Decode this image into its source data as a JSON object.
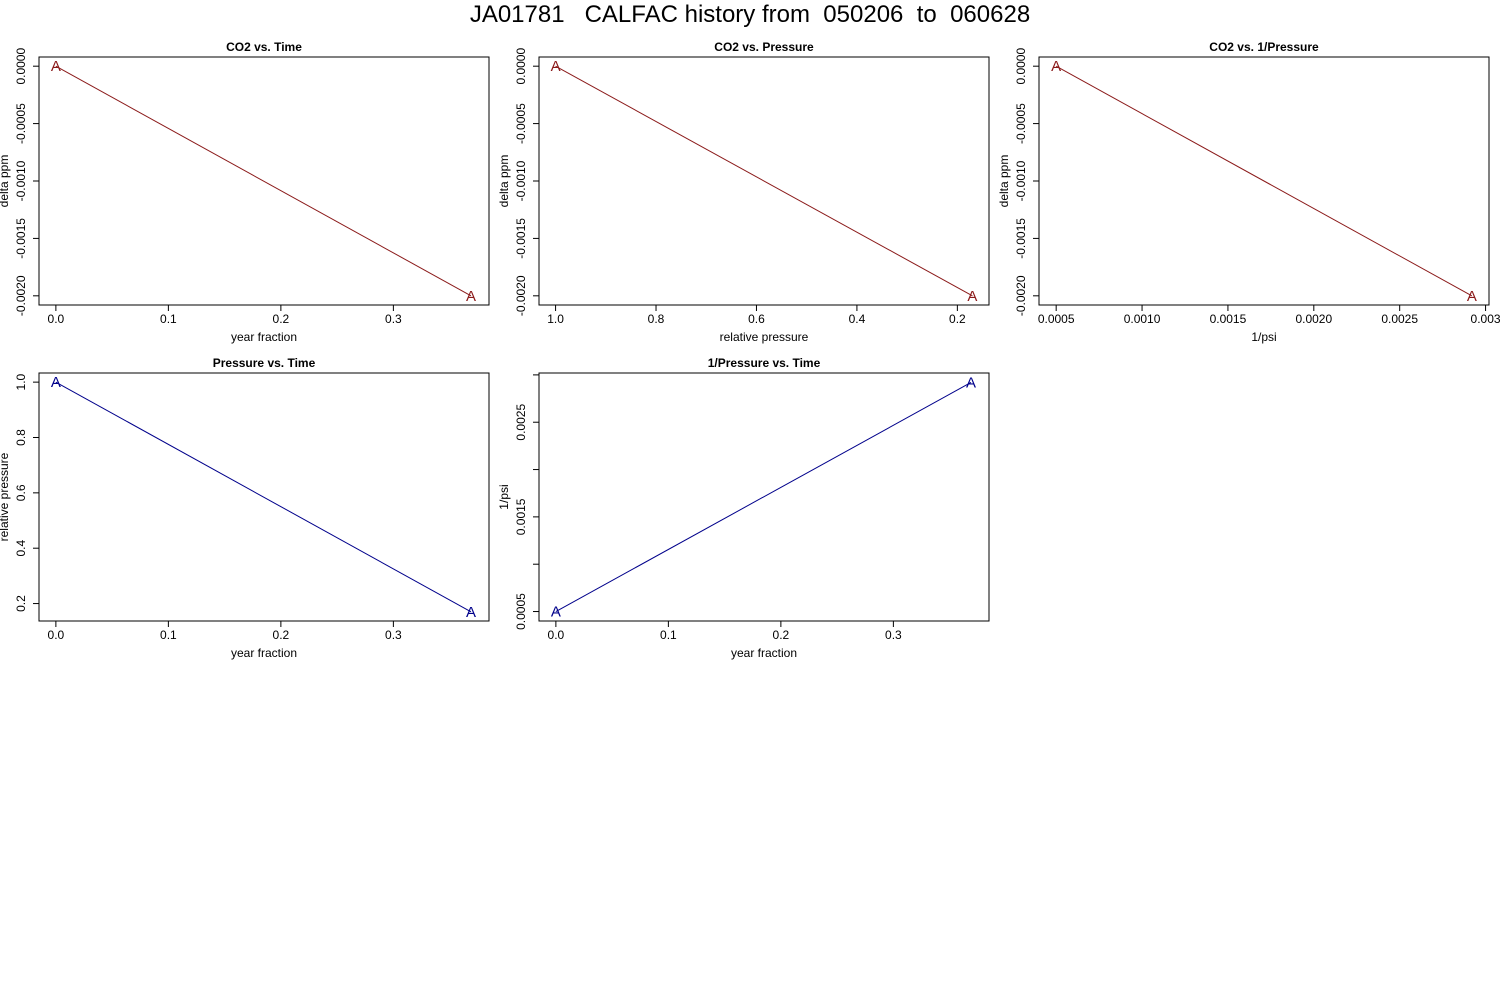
{
  "page": {
    "title": "JA01781   CALFAC history from  050206  to  060628"
  },
  "colors": {
    "co2_series": "#8b1a1a",
    "pressure_series": "#00008b",
    "axis": "#000000",
    "background": "#ffffff"
  },
  "chart_data": [
    {
      "id": "co2-vs-time",
      "type": "line",
      "title": "CO2 vs. Time",
      "xlabel": "year fraction",
      "ylabel": "delta ppm",
      "xlim": [
        -0.015,
        0.385
      ],
      "ylim": [
        -0.00208,
        8e-05
      ],
      "xticks": [
        0.0,
        0.1,
        0.2,
        0.3
      ],
      "xtick_labels": [
        "0.0",
        "0.1",
        "0.2",
        "0.3"
      ],
      "yticks": [
        0.0,
        -0.0005,
        -0.001,
        -0.0015,
        -0.002
      ],
      "ytick_labels": [
        "0.0000",
        "-0.0005",
        "-0.0010",
        "-0.0015",
        "-0.0020"
      ],
      "x_reversed": false,
      "color": "#8b1a1a",
      "marker": "A",
      "x": [
        0.0,
        0.369
      ],
      "y": [
        0.0,
        -0.002
      ]
    },
    {
      "id": "co2-vs-pressure",
      "type": "line",
      "title": "CO2 vs. Pressure",
      "xlabel": "relative pressure",
      "ylabel": "delta ppm",
      "xlim": [
        1.033,
        0.137
      ],
      "ylim": [
        -0.00208,
        8e-05
      ],
      "xticks": [
        1.0,
        0.8,
        0.6,
        0.4,
        0.2
      ],
      "xtick_labels": [
        "1.0",
        "0.8",
        "0.6",
        "0.4",
        "0.2"
      ],
      "yticks": [
        0.0,
        -0.0005,
        -0.001,
        -0.0015,
        -0.002
      ],
      "ytick_labels": [
        "0.0000",
        "-0.0005",
        "-0.0010",
        "-0.0015",
        "-0.0020"
      ],
      "x_reversed": true,
      "color": "#8b1a1a",
      "marker": "A",
      "x": [
        1.0,
        0.17
      ],
      "y": [
        0.0,
        -0.002
      ]
    },
    {
      "id": "co2-vs-inv-pressure",
      "type": "line",
      "title": "CO2 vs. 1/Pressure",
      "xlabel": "1/psi",
      "ylabel": "delta ppm",
      "xlim": [
        0.0004,
        0.00302
      ],
      "ylim": [
        -0.00208,
        8e-05
      ],
      "xticks": [
        0.0005,
        0.001,
        0.0015,
        0.002,
        0.0025,
        0.003
      ],
      "xtick_labels": [
        "0.0005",
        "0.0010",
        "0.0015",
        "0.0020",
        "0.0025",
        "0.003"
      ],
      "yticks": [
        0.0,
        -0.0005,
        -0.001,
        -0.0015,
        -0.002
      ],
      "ytick_labels": [
        "0.0000",
        "-0.0005",
        "-0.0010",
        "-0.0015",
        "-0.0020"
      ],
      "x_reversed": false,
      "color": "#8b1a1a",
      "marker": "A",
      "x": [
        0.0005,
        0.00292
      ],
      "y": [
        0.0,
        -0.002
      ]
    },
    {
      "id": "pressure-vs-time",
      "type": "line",
      "title": "Pressure vs. Time",
      "xlabel": "year fraction",
      "ylabel": "relative pressure",
      "xlim": [
        -0.015,
        0.385
      ],
      "ylim": [
        0.137,
        1.033
      ],
      "xticks": [
        0.0,
        0.1,
        0.2,
        0.3
      ],
      "xtick_labels": [
        "0.0",
        "0.1",
        "0.2",
        "0.3"
      ],
      "yticks": [
        1.0,
        0.8,
        0.6,
        0.4,
        0.2
      ],
      "ytick_labels": [
        "1.0",
        "0.8",
        "0.6",
        "0.4",
        "0.2"
      ],
      "x_reversed": false,
      "color": "#00008b",
      "marker": "A",
      "x": [
        0.0,
        0.369
      ],
      "y": [
        1.0,
        0.17
      ]
    },
    {
      "id": "inv-pressure-vs-time",
      "type": "line",
      "title": "1/Pressure vs. Time",
      "xlabel": "year fraction",
      "ylabel": "1/psi",
      "xlim": [
        -0.015,
        0.385
      ],
      "ylim": [
        0.0004,
        0.00302
      ],
      "xticks": [
        0.0,
        0.1,
        0.2,
        0.3
      ],
      "xtick_labels": [
        "0.0",
        "0.1",
        "0.2",
        "0.3"
      ],
      "yticks": [
        0.0005,
        0.001,
        0.0015,
        0.002,
        0.0025,
        0.003
      ],
      "ytick_labels": [
        "0.0005",
        "",
        "0.0015",
        "",
        "0.0025",
        ""
      ],
      "x_reversed": false,
      "color": "#00008b",
      "marker": "A",
      "x": [
        0.0,
        0.369
      ],
      "y": [
        0.0005,
        0.00292
      ]
    }
  ]
}
